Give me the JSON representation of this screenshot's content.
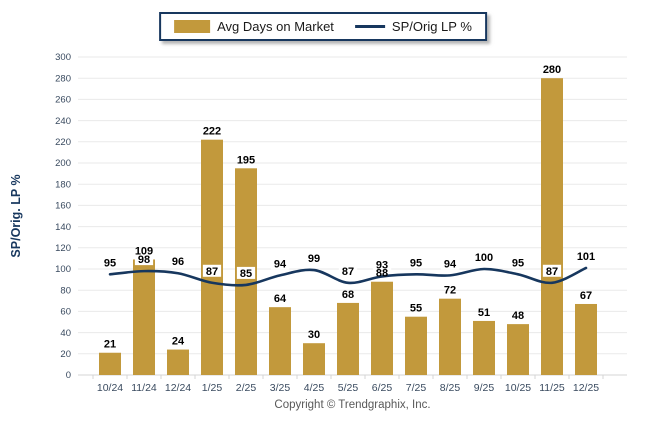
{
  "legend": {
    "bar_label": "Avg Days on Market",
    "line_label": "SP/Orig LP %"
  },
  "footer": {
    "copyright": "Copyright © Trendgraphix, Inc."
  },
  "colors": {
    "bar": "#C2993C",
    "line": "#17375E",
    "grid": "#EAEAEA",
    "axis": "#D4D4D4",
    "tick_label": "#394A5F",
    "value_label": "#000000",
    "ylabel": "#17375E",
    "legend_border": "#17375E",
    "footer_text": "#595959"
  },
  "chart_data": {
    "type": "combo",
    "title": "",
    "xlabel": "",
    "ylabel": "SP/Orig. LP %",
    "ylim": [
      0,
      300
    ],
    "ytick_step": 20,
    "grid": true,
    "legend_position": "top-center",
    "categories": [
      "10/24",
      "11/24",
      "12/24",
      "1/25",
      "2/25",
      "3/25",
      "4/25",
      "5/25",
      "6/25",
      "7/25",
      "8/25",
      "9/25",
      "10/25",
      "11/25",
      "12/25"
    ],
    "series": [
      {
        "name": "Avg Days on Market",
        "type": "bar",
        "values": [
          21,
          109,
          24,
          222,
          195,
          64,
          30,
          68,
          88,
          55,
          72,
          51,
          48,
          280,
          67
        ]
      },
      {
        "name": "SP/Orig LP %",
        "type": "line",
        "values": [
          95,
          98,
          96,
          87,
          85,
          94,
          99,
          87,
          93,
          95,
          94,
          100,
          95,
          87,
          101
        ]
      }
    ]
  }
}
